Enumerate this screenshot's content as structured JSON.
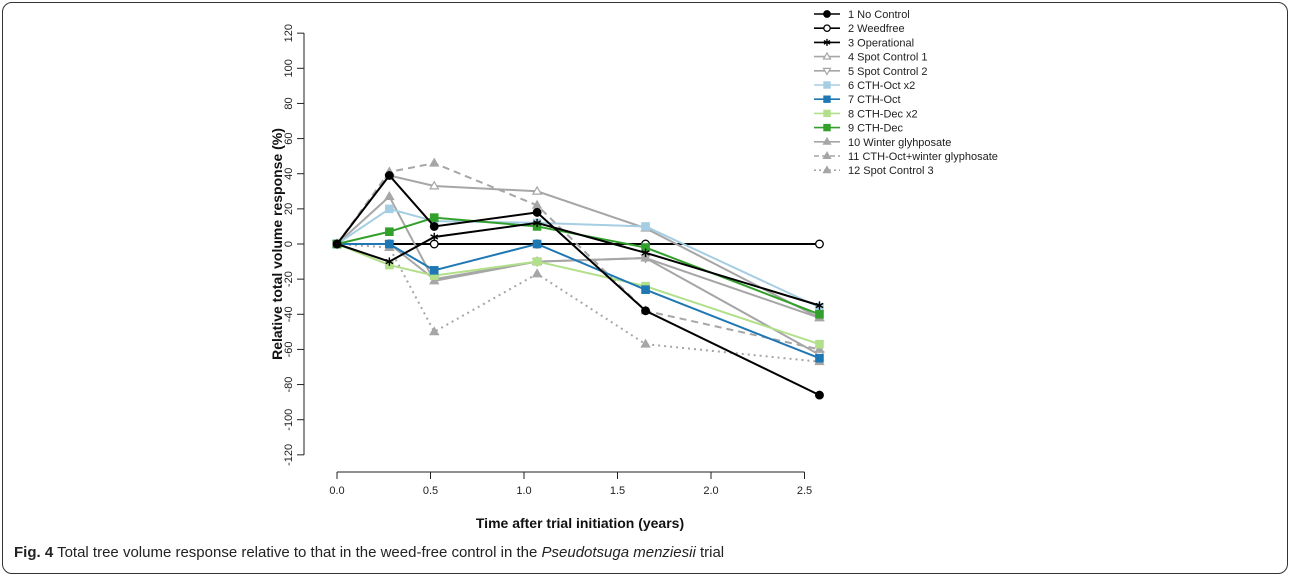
{
  "chart_data": {
    "type": "line",
    "xlabel": "Time after trial initiation (years)",
    "ylabel": "Relative total volume response (%)",
    "xlim": [
      0,
      2.6
    ],
    "ylim": [
      -120,
      120
    ],
    "xticks": [
      "0.0",
      "0.5",
      "1.0",
      "1.5",
      "2.0",
      "2.5"
    ],
    "yticks": [
      "-120",
      "-100",
      "-80",
      "-60",
      "-40",
      "-20",
      "0",
      "20",
      "40",
      "60",
      "80",
      "100",
      "120"
    ],
    "legend_position": "top-right",
    "x": [
      0,
      0.28,
      0.52,
      1.07,
      1.65,
      2.58
    ],
    "series": [
      {
        "name": "1 No Control",
        "values": [
          0,
          39,
          10,
          18,
          -38,
          -86
        ],
        "color": "#000000",
        "marker": "circle-filled",
        "dash": "solid"
      },
      {
        "name": "2 Weedfree",
        "values": [
          0,
          0,
          0,
          0,
          0,
          0
        ],
        "color": "#000000",
        "marker": "circle-open",
        "dash": "solid"
      },
      {
        "name": "3 Operational",
        "values": [
          0,
          -10,
          4,
          12,
          -5,
          -35
        ],
        "color": "#000000",
        "marker": "asterisk",
        "dash": "solid"
      },
      {
        "name": "4 Spot Control 1",
        "values": [
          0,
          39,
          33,
          30,
          9,
          -42
        ],
        "color": "#a6a6a6",
        "marker": "triangle-up-open",
        "dash": "solid"
      },
      {
        "name": "5 Spot Control 2",
        "values": [
          0,
          0,
          -20,
          -10,
          -8,
          -63
        ],
        "color": "#a6a6a6",
        "marker": "triangle-down-open",
        "dash": "solid"
      },
      {
        "name": "6 CTH-Oct x2",
        "values": [
          0,
          20,
          13,
          12,
          10,
          -36
        ],
        "color": "#a6cee3",
        "marker": "square-filled",
        "dash": "solid"
      },
      {
        "name": "7 CTH-Oct",
        "values": [
          0,
          0,
          -15,
          0,
          -26,
          -65
        ],
        "color": "#1f78b4",
        "marker": "square-filled",
        "dash": "solid"
      },
      {
        "name": "8 CTH-Dec x2",
        "values": [
          0,
          -12,
          -18,
          -10,
          -24,
          -57
        ],
        "color": "#b2df8a",
        "marker": "square-filled",
        "dash": "solid"
      },
      {
        "name": "9 CTH-Dec",
        "values": [
          0,
          7,
          15,
          10,
          -2,
          -40
        ],
        "color": "#33a02c",
        "marker": "square-filled",
        "dash": "solid"
      },
      {
        "name": "10 Winter glyhposate",
        "values": [
          0,
          27,
          -21,
          -10,
          -8,
          -42
        ],
        "color": "#a6a6a6",
        "marker": "triangle-up-filled",
        "dash": "solid"
      },
      {
        "name": "11 CTH-Oct+winter glyphosate",
        "values": [
          0,
          41,
          46,
          22,
          -38,
          -60
        ],
        "color": "#a6a6a6",
        "marker": "triangle-up-filled",
        "dash": "dashed"
      },
      {
        "name": "12 Spot Control 3",
        "values": [
          0,
          -2,
          -50,
          -17,
          -57,
          -67
        ],
        "color": "#a6a6a6",
        "marker": "triangle-up-filled",
        "dash": "dotted"
      }
    ]
  },
  "caption": {
    "fig_label": "Fig. 4",
    "text_before": "Total tree volume response relative to that in the weed-free control in the ",
    "species": "Pseudotsuga menziesii",
    "text_after": " trial"
  }
}
